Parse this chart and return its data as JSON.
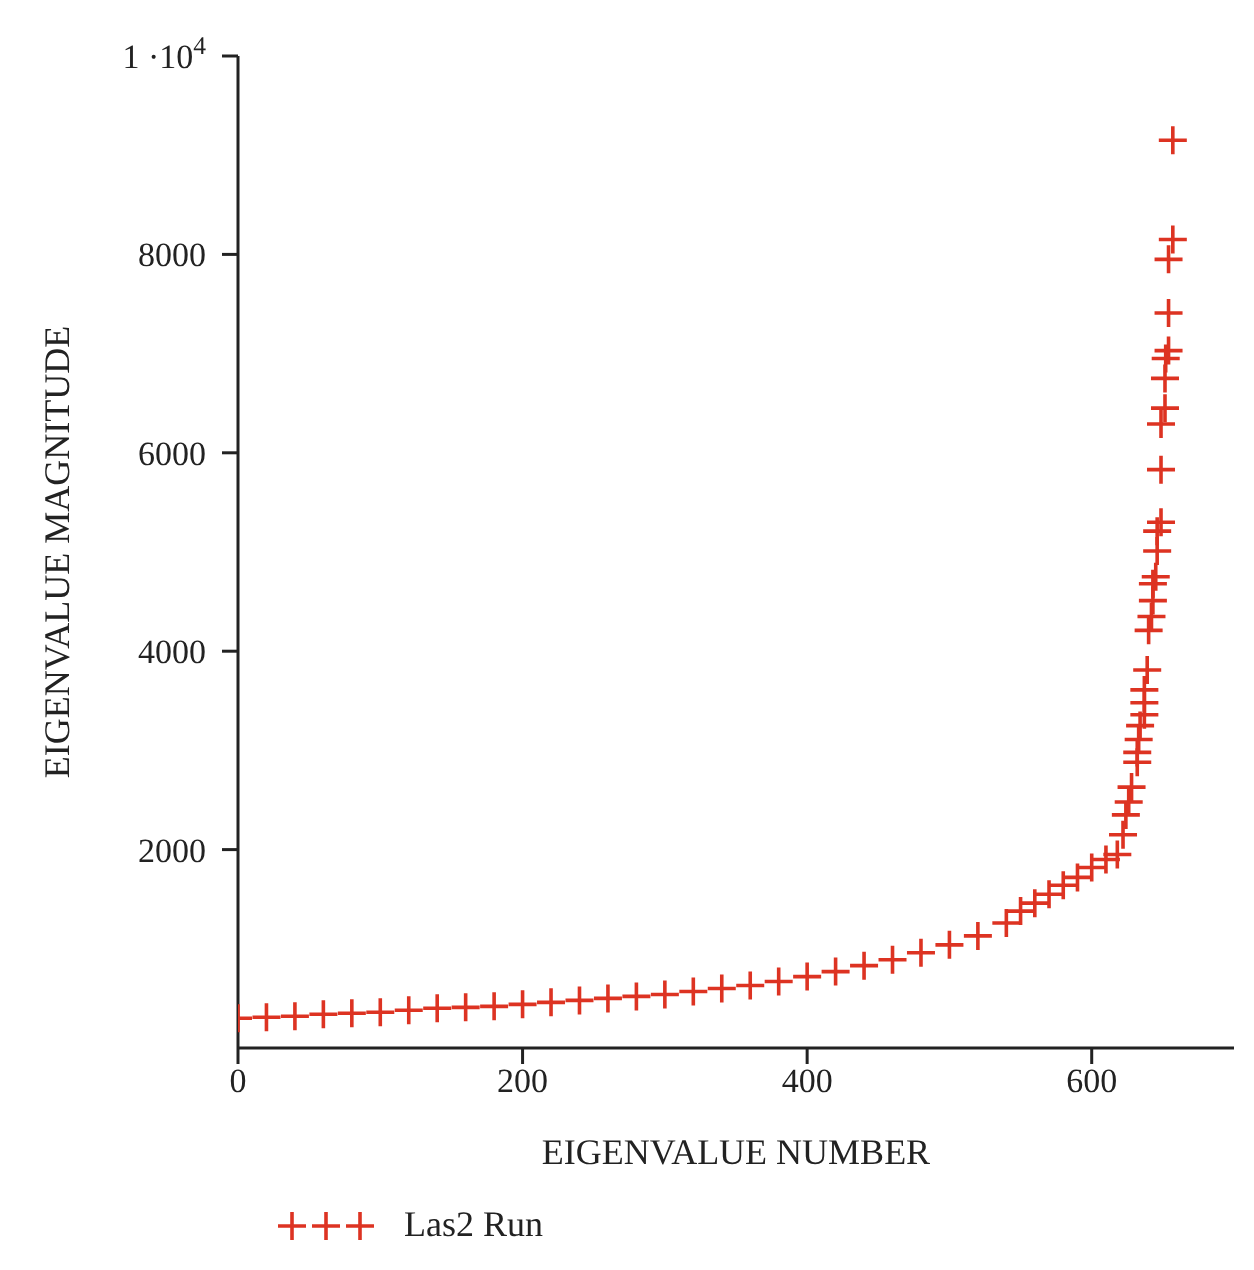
{
  "chart_data": {
    "type": "scatter",
    "xlabel": "EIGENVALUE NUMBER",
    "ylabel": "EIGENVALUE MAGNITUDE",
    "x": [
      0,
      20,
      40,
      60,
      80,
      100,
      120,
      140,
      160,
      180,
      200,
      220,
      240,
      260,
      280,
      300,
      320,
      340,
      360,
      380,
      400,
      420,
      440,
      460,
      480,
      500,
      520,
      540,
      550,
      560,
      570,
      580,
      590,
      600,
      610,
      618,
      622,
      624,
      626,
      628,
      632,
      632,
      633,
      634,
      637,
      637,
      637,
      639,
      640,
      642,
      643,
      643,
      645,
      646,
      646,
      648.7,
      648.7,
      648.7,
      651.5,
      651.5,
      652,
      654,
      654,
      654,
      657,
      657
    ],
    "series": [
      {
        "name": "Las2 Run",
        "color": "#dd3322",
        "values": [
          300,
          310,
          320,
          340,
          350,
          360,
          380,
          400,
          410,
          420,
          440,
          460,
          480,
          500,
          520,
          540,
          570,
          600,
          630,
          670,
          720,
          770,
          830,
          890,
          960,
          1040,
          1130,
          1260,
          1380,
          1460,
          1550,
          1640,
          1720,
          1820,
          1900,
          1950,
          2150,
          2350,
          2480,
          2630,
          2880,
          2980,
          3110,
          3250,
          3360,
          3480,
          3610,
          3810,
          4210,
          4350,
          4510,
          4680,
          4750,
          5010,
          5210,
          5300,
          5830,
          6290,
          6450,
          6750,
          6950,
          7030,
          7410,
          7950,
          8150,
          9150
        ]
      }
    ],
    "xlim": [
      0,
      700
    ],
    "xticks": [
      0,
      200,
      400,
      600
    ],
    "ylim": [
      0,
      10000
    ],
    "yticks": [
      2000,
      4000,
      6000,
      8000,
      {
        "value": 10000,
        "label": "1 ·10$^{4}$"
      }
    ],
    "marker": "cross",
    "legend": "bottom left",
    "grid": false
  }
}
